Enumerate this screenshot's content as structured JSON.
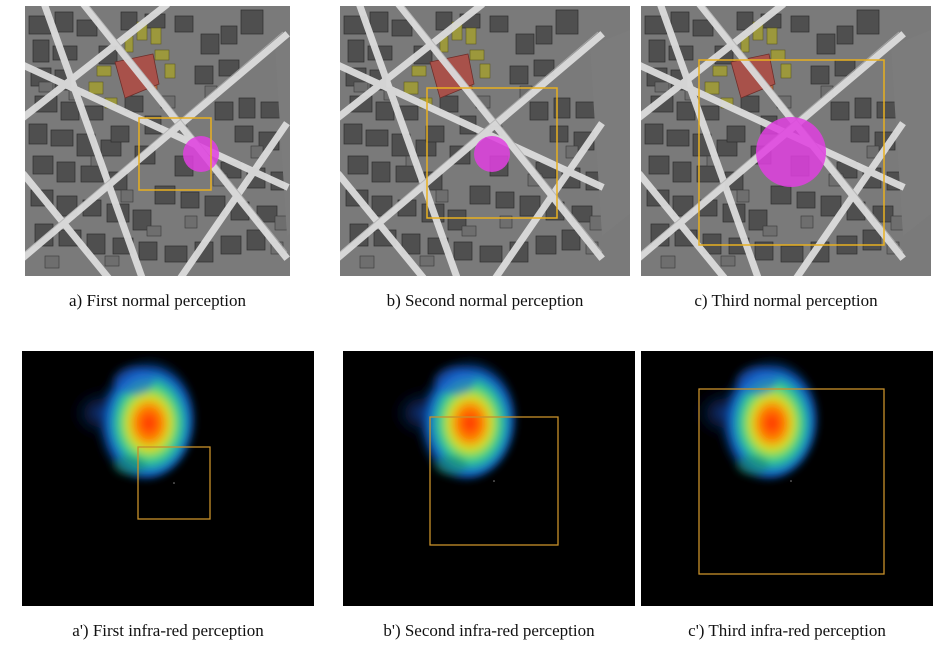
{
  "captions": {
    "a": "a) First normal perception",
    "b": "b) Second normal perception",
    "c": "c) Third normal perception",
    "a_ir": "a') First infra-red perception",
    "b_ir": "b') Second infra-red perception",
    "c_ir": "c') Third infra-red perception"
  },
  "colors": {
    "map_background": "#7a7a7a",
    "road": "#d8d8d8",
    "building_dark": "#4a4a4a",
    "building_mid": "#6a6a6a",
    "building_yellow": "#a09a3a",
    "building_red": "#a8514a",
    "agent_magenta": "#e040e0",
    "perception_box": "#e8b020",
    "ir_background": "#000000",
    "ir_box": "#c8902a"
  }
}
